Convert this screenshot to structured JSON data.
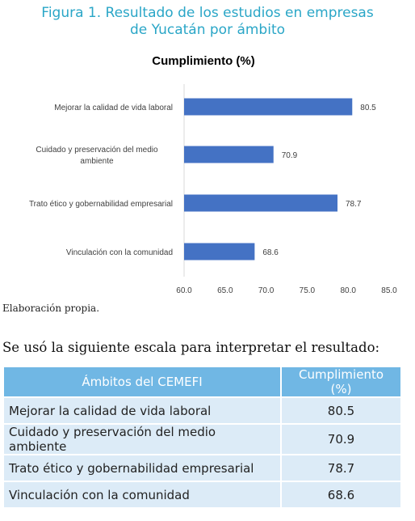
{
  "figure": {
    "title_line1": "Figura 1. Resultado de los estudios en empresas",
    "title_line2": "de Yucatán por ámbito"
  },
  "chart_data": {
    "type": "bar",
    "orientation": "horizontal",
    "title": "Cumplimiento (%)",
    "categories": [
      "Mejorar la calidad de vida laboral",
      "Cuidado y preservación del medio ambiente",
      "Trato ético y gobernabilidad empresarial",
      "Vinculación con la comunidad"
    ],
    "category_lines": [
      [
        "Mejorar la calidad de vida laboral"
      ],
      [
        "Cuidado y preservación del medio",
        "ambiente"
      ],
      [
        "Trato ético y gobernabilidad empresarial"
      ],
      [
        "Vinculación con la comunidad"
      ]
    ],
    "values": [
      80.5,
      70.9,
      78.7,
      68.6
    ],
    "value_labels": [
      "80.5",
      "70.9",
      "78.7",
      "68.6"
    ],
    "xlim": [
      60,
      85
    ],
    "xticks": [
      "60.0",
      "65.0",
      "70.0",
      "75.0",
      "80.0",
      "85.0"
    ],
    "grid": false,
    "legend": "none",
    "bar_color": "#4472c4"
  },
  "source_note": "Elaboración propia.",
  "intro_text": "Se usó la siguiente escala para interpretar el resultado:",
  "table": {
    "headers": [
      "Ámbitos del CEMEFI",
      "Cumplimiento (%)"
    ],
    "rows": [
      [
        "Mejorar la calidad de vida laboral",
        "80.5"
      ],
      [
        "Cuidado y preservación del medio ambiente",
        "70.9"
      ],
      [
        "Trato ético y gobernabilidad empresarial",
        "78.7"
      ],
      [
        "Vinculación con la comunidad",
        "68.6"
      ]
    ]
  }
}
